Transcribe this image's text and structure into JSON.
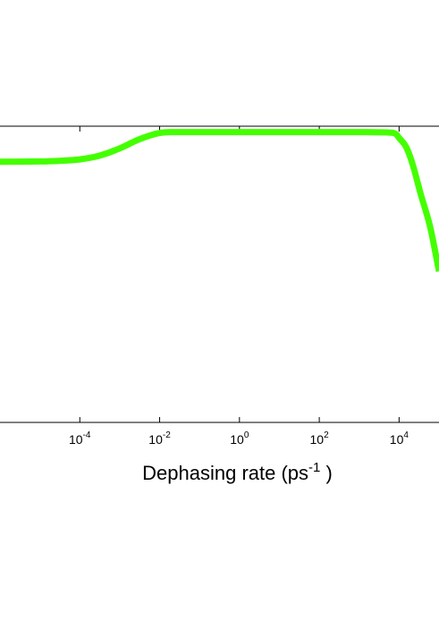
{
  "chart_data": {
    "type": "line",
    "title": "",
    "xlabel": {
      "prefix": "Dephasing rate (ps",
      "exponent": "-1",
      "suffix": " )"
    },
    "ylabel": "",
    "x_scale": "log",
    "xlim": [
      1e-06,
      100000.0
    ],
    "ylim": [
      0,
      1
    ],
    "grid": false,
    "x_ticks": [
      {
        "value": 0.0001,
        "base": "10",
        "exponent": "-4"
      },
      {
        "value": 0.01,
        "base": "10",
        "exponent": "-2"
      },
      {
        "value": 1,
        "base": "10",
        "exponent": "0"
      },
      {
        "value": 100,
        "base": "10",
        "exponent": "2"
      },
      {
        "value": 10000,
        "base": "10",
        "exponent": "4"
      }
    ],
    "series": [
      {
        "color": "#44ff00",
        "x": [
          1e-06,
          1e-05,
          3e-05,
          0.0001,
          0.0003,
          0.001,
          0.003,
          0.01,
          0.03,
          1,
          100,
          1000,
          5000,
          8000,
          10000,
          15000,
          22000,
          35000,
          60000,
          100000.0
        ],
        "y": [
          0.88,
          0.881,
          0.883,
          0.888,
          0.9,
          0.925,
          0.955,
          0.977,
          0.98,
          0.98,
          0.98,
          0.98,
          0.979,
          0.975,
          0.96,
          0.93,
          0.87,
          0.77,
          0.66,
          0.51
        ]
      }
    ]
  }
}
